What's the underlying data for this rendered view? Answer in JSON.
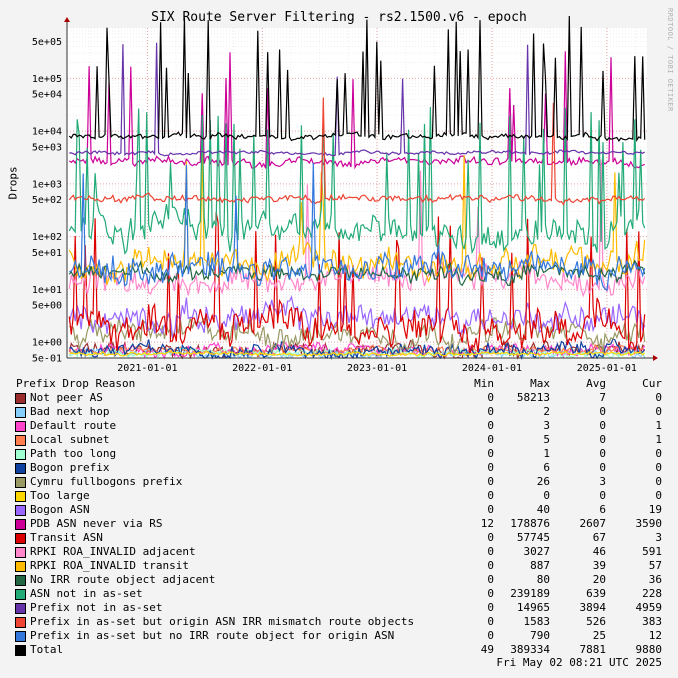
{
  "chart_data": {
    "type": "line",
    "title": "SIX Route Server Filtering - rs2.1500.v6 - epoch",
    "ylabel": "Drops",
    "watermark": "RRDTOOL / TOBI OETIKER",
    "yscale": "log",
    "ylim": [
      0.5,
      900000
    ],
    "yticks": [
      {
        "v": 500000,
        "label": "5e+05"
      },
      {
        "v": 100000,
        "label": "1e+05"
      },
      {
        "v": 50000,
        "label": "5e+04"
      },
      {
        "v": 10000,
        "label": "1e+04"
      },
      {
        "v": 5000,
        "label": "5e+03"
      },
      {
        "v": 1000,
        "label": "1e+03"
      },
      {
        "v": 500,
        "label": "5e+02"
      },
      {
        "v": 100,
        "label": "1e+02"
      },
      {
        "v": 50,
        "label": "5e+01"
      },
      {
        "v": 10,
        "label": "1e+01"
      },
      {
        "v": 5,
        "label": "5e+00"
      },
      {
        "v": 1,
        "label": "1e+00"
      },
      {
        "v": 0.5,
        "label": "5e-01"
      }
    ],
    "xrange": [
      2020.3,
      2025.35
    ],
    "xticks": [
      {
        "v": 2021.0,
        "label": "2021-01-01"
      },
      {
        "v": 2022.0,
        "label": "2022-01-01"
      },
      {
        "v": 2023.0,
        "label": "2023-01-01"
      },
      {
        "v": 2024.0,
        "label": "2024-01-01"
      },
      {
        "v": 2025.0,
        "label": "2025-01-01"
      }
    ],
    "grid": true,
    "legend_header": {
      "reason": "Prefix Drop Reason",
      "min": "Min",
      "max": "Max",
      "avg": "Avg",
      "cur": "Cur"
    },
    "series": [
      {
        "name": "Not peer AS",
        "color": "#9b2c2c",
        "min": "0",
        "max": "58213",
        "avg": "7",
        "cur": "0",
        "base": 0.7,
        "noise": 0.2,
        "spikes": 0
      },
      {
        "name": "Bad next hop",
        "color": "#87cefa",
        "min": "0",
        "max": "2",
        "avg": "0",
        "cur": "0",
        "base": 0.6,
        "noise": 0.1,
        "spikes": 0
      },
      {
        "name": "Default route",
        "color": "#ff44cc",
        "min": "0",
        "max": "3",
        "avg": "0",
        "cur": "1",
        "base": 0.7,
        "noise": 0.15,
        "spikes": 0
      },
      {
        "name": "Local subnet",
        "color": "#ff7f50",
        "min": "0",
        "max": "5",
        "avg": "0",
        "cur": "1",
        "base": 0.7,
        "noise": 0.1,
        "spikes": 0
      },
      {
        "name": "Path too long",
        "color": "#a0ffd0",
        "min": "0",
        "max": "1",
        "avg": "0",
        "cur": "0",
        "base": 0.6,
        "noise": 0.1,
        "spikes": 0
      },
      {
        "name": "Bogon prefix",
        "color": "#1040a0",
        "min": "0",
        "max": "6",
        "avg": "0",
        "cur": "0",
        "base": 0.7,
        "noise": 0.2,
        "spikes": 0
      },
      {
        "name": "Cymru fullbogons prefix",
        "color": "#999966",
        "min": "0",
        "max": "26",
        "avg": "3",
        "cur": "0",
        "base": 1.5,
        "noise": 0.35,
        "spikes": 0
      },
      {
        "name": "Too large",
        "color": "#ffd700",
        "min": "0",
        "max": "0",
        "avg": "0",
        "cur": "0",
        "base": 0.6,
        "noise": 0.05,
        "spikes": 0
      },
      {
        "name": "Bogon ASN",
        "color": "#9966ff",
        "min": "0",
        "max": "40",
        "avg": "6",
        "cur": "19",
        "base": 3,
        "noise": 0.4,
        "spikes": 0
      },
      {
        "name": "PDB ASN never via RS",
        "color": "#cc0099",
        "min": "12",
        "max": "178876",
        "avg": "2607",
        "cur": "3590",
        "base": 2600,
        "noise": 0.12,
        "spikes": 8
      },
      {
        "name": "Transit ASN",
        "color": "#dd0000",
        "min": "0",
        "max": "57745",
        "avg": "67",
        "cur": "3",
        "base": 2,
        "noise": 0.5,
        "spikes": 25
      },
      {
        "name": "RPKI ROA_INVALID adjacent",
        "color": "#ff88cc",
        "min": "0",
        "max": "3027",
        "avg": "46",
        "cur": "591",
        "base": 15,
        "noise": 0.35,
        "spikes": 4
      },
      {
        "name": "RPKI ROA_INVALID transit",
        "color": "#ffbb00",
        "min": "0",
        "max": "887",
        "avg": "39",
        "cur": "57",
        "base": 30,
        "noise": 0.4,
        "spikes": 6
      },
      {
        "name": "No IRR route object adjacent",
        "color": "#226644",
        "min": "0",
        "max": "80",
        "avg": "20",
        "cur": "36",
        "base": 20,
        "noise": 0.25,
        "spikes": 0
      },
      {
        "name": "ASN not in as-set",
        "color": "#22aa77",
        "min": "0",
        "max": "239189",
        "avg": "639",
        "cur": "228",
        "base": 150,
        "noise": 0.45,
        "spikes": 30
      },
      {
        "name": "Prefix not in as-set",
        "color": "#6633aa",
        "min": "0",
        "max": "14965",
        "avg": "3894",
        "cur": "4959",
        "base": 3894,
        "noise": 0.05,
        "spikes": 2
      },
      {
        "name": "Prefix in as-set but origin ASN IRR mismatch route objects",
        "color": "#ee4433",
        "min": "0",
        "max": "1583",
        "avg": "526",
        "cur": "383",
        "base": 520,
        "noise": 0.1,
        "spikes": 2
      },
      {
        "name": "Prefix in as-set but no IRR route object for origin ASN",
        "color": "#3377dd",
        "min": "0",
        "max": "790",
        "avg": "25",
        "cur": "12",
        "base": 25,
        "noise": 0.4,
        "spikes": 3
      },
      {
        "name": "Total",
        "color": "#000000",
        "min": "49",
        "max": "389334",
        "avg": "7881",
        "cur": "9880",
        "base": 7881,
        "noise": 0.08,
        "spikes": 30
      }
    ]
  },
  "timestamp": "Fri May 02 08:21 UTC 2025"
}
